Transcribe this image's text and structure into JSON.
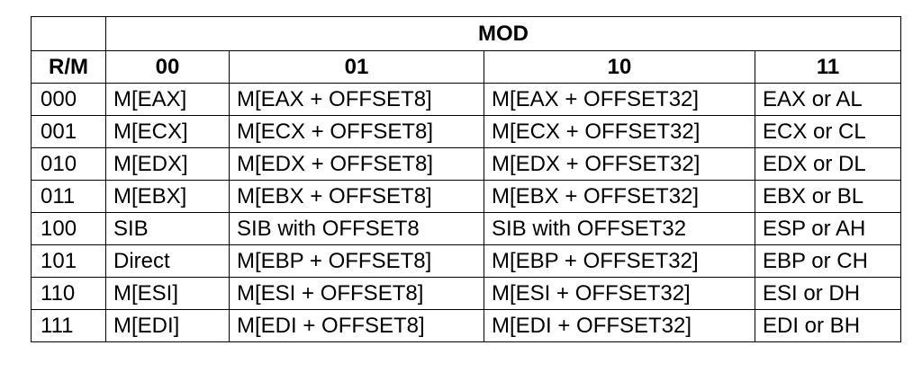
{
  "table": {
    "mod_title": "MOD",
    "headers": [
      "R/M",
      "00",
      "01",
      "10",
      "11"
    ],
    "rows": [
      [
        "000",
        "M[EAX]",
        "M[EAX + OFFSET8]",
        "M[EAX + OFFSET32]",
        "EAX or AL"
      ],
      [
        "001",
        "M[ECX]",
        "M[ECX + OFFSET8]",
        "M[ECX + OFFSET32]",
        "ECX or CL"
      ],
      [
        "010",
        "M[EDX]",
        "M[EDX + OFFSET8]",
        "M[EDX + OFFSET32]",
        "EDX or DL"
      ],
      [
        "011",
        "M[EBX]",
        "M[EBX + OFFSET8]",
        "M[EBX + OFFSET32]",
        "EBX or BL"
      ],
      [
        "100",
        "SIB",
        "SIB with OFFSET8",
        "SIB with OFFSET32",
        "ESP or AH"
      ],
      [
        "101",
        "Direct",
        "M[EBP + OFFSET8]",
        "M[EBP + OFFSET32]",
        "EBP or CH"
      ],
      [
        "110",
        "M[ESI]",
        "M[ESI + OFFSET8]",
        "M[ESI + OFFSET32]",
        "ESI or DH"
      ],
      [
        "111",
        "M[EDI]",
        "M[EDI + OFFSET8]",
        "M[EDI + OFFSET32]",
        "EDI or BH"
      ]
    ]
  }
}
